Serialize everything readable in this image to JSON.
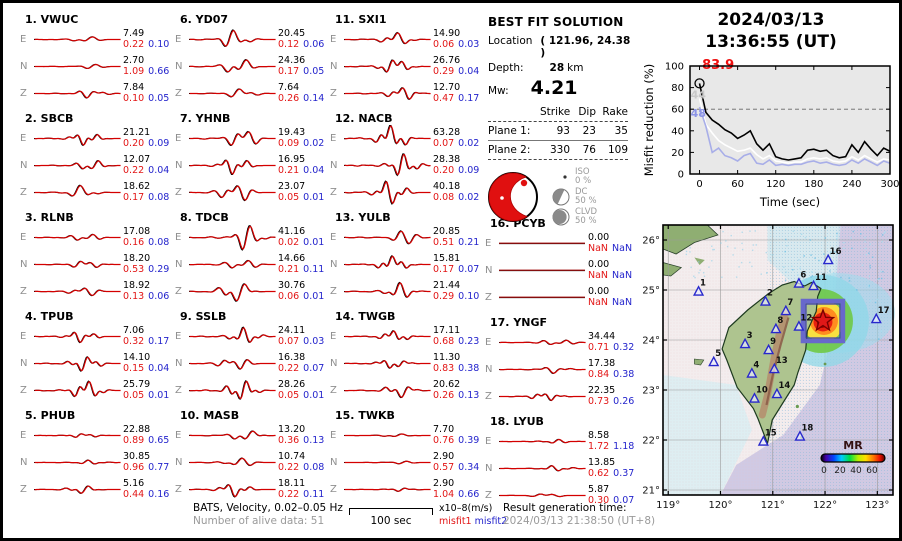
{
  "header": {
    "date": "2024/03/13",
    "time": "13:36:55  (UT)"
  },
  "solution": {
    "title": "BEST FIT SOLUTION",
    "location_label": "Location",
    "location_value": "( 121.96,  24.38 )",
    "depth_label": "Depth:",
    "depth_value": "28",
    "depth_unit": "km",
    "mw_label": "Mw:",
    "mw_value": "4.21",
    "table": {
      "headers": [
        "Strike",
        "Dip",
        "Rake"
      ],
      "rows": [
        {
          "label": "Plane 1:",
          "values": [
            "93",
            "23",
            "35"
          ]
        },
        {
          "label": "Plane 2:",
          "values": [
            "330",
            "76",
            "109"
          ]
        }
      ]
    },
    "legend": [
      {
        "label": "ISO",
        "pct": "0 %"
      },
      {
        "label": "DC",
        "pct": "50 %"
      },
      {
        "label": "CLVD",
        "pct": "50 %"
      }
    ]
  },
  "stations": [
    {
      "num": "1.",
      "code": "VWUC",
      "ch": [
        {
          "comp": "E",
          "amp": "7.49",
          "m1": "0.22",
          "m2": "0.10",
          "w": 0.22
        },
        {
          "comp": "N",
          "amp": "2.70",
          "m1": "1.09",
          "m2": "0.66",
          "w": 0.15
        },
        {
          "comp": "Z",
          "amp": "7.84",
          "m1": "0.10",
          "m2": "0.05",
          "w": 0.3
        }
      ]
    },
    {
      "num": "2.",
      "code": "SBCB",
      "ch": [
        {
          "comp": "E",
          "amp": "21.21",
          "m1": "0.20",
          "m2": "0.09",
          "w": 0.45
        },
        {
          "comp": "N",
          "amp": "12.07",
          "m1": "0.22",
          "m2": "0.04",
          "w": 0.4
        },
        {
          "comp": "Z",
          "amp": "18.62",
          "m1": "0.17",
          "m2": "0.08",
          "w": 0.45
        }
      ]
    },
    {
      "num": "3.",
      "code": "RLNB",
      "ch": [
        {
          "comp": "E",
          "amp": "17.08",
          "m1": "0.16",
          "m2": "0.08",
          "w": 0.3
        },
        {
          "comp": "N",
          "amp": "18.20",
          "m1": "0.53",
          "m2": "0.29",
          "w": 0.3
        },
        {
          "comp": "Z",
          "amp": "18.92",
          "m1": "0.13",
          "m2": "0.06",
          "w": 0.35
        }
      ]
    },
    {
      "num": "4.",
      "code": "TPUB",
      "ch": [
        {
          "comp": "E",
          "amp": "7.06",
          "m1": "0.32",
          "m2": "0.17",
          "w": 0.4
        },
        {
          "comp": "N",
          "amp": "14.10",
          "m1": "0.15",
          "m2": "0.04",
          "w": 0.55
        },
        {
          "comp": "Z",
          "amp": "25.79",
          "m1": "0.05",
          "m2": "0.01",
          "w": 0.7
        }
      ]
    },
    {
      "num": "5.",
      "code": "PHUB",
      "ch": [
        {
          "comp": "E",
          "amp": "22.88",
          "m1": "0.89",
          "m2": "0.65",
          "w": 0.15
        },
        {
          "comp": "N",
          "amp": "30.85",
          "m1": "0.96",
          "m2": "0.77",
          "w": 0.15
        },
        {
          "comp": "Z",
          "amp": "5.16",
          "m1": "0.44",
          "m2": "0.16",
          "w": 0.3
        }
      ]
    },
    {
      "num": "6.",
      "code": "YD07",
      "ch": [
        {
          "comp": "E",
          "amp": "20.45",
          "m1": "0.12",
          "m2": "0.06",
          "w": 0.65
        },
        {
          "comp": "N",
          "amp": "24.36",
          "m1": "0.17",
          "m2": "0.05",
          "w": 0.6
        },
        {
          "comp": "Z",
          "amp": "7.64",
          "m1": "0.26",
          "m2": "0.14",
          "w": 0.35
        }
      ]
    },
    {
      "num": "7.",
      "code": "YHNB",
      "ch": [
        {
          "comp": "E",
          "amp": "19.43",
          "m1": "0.09",
          "m2": "0.02",
          "w": 0.75
        },
        {
          "comp": "N",
          "amp": "16.95",
          "m1": "0.21",
          "m2": "0.04",
          "w": 0.6
        },
        {
          "comp": "Z",
          "amp": "23.07",
          "m1": "0.05",
          "m2": "0.01",
          "w": 0.8
        }
      ]
    },
    {
      "num": "8.",
      "code": "TDCB",
      "ch": [
        {
          "comp": "E",
          "amp": "41.16",
          "m1": "0.02",
          "m2": "0.01",
          "w": 0.9
        },
        {
          "comp": "N",
          "amp": "14.66",
          "m1": "0.21",
          "m2": "0.11",
          "w": 0.45
        },
        {
          "comp": "Z",
          "amp": "30.76",
          "m1": "0.06",
          "m2": "0.01",
          "w": 0.8
        }
      ]
    },
    {
      "num": "9.",
      "code": "SSLB",
      "ch": [
        {
          "comp": "E",
          "amp": "24.11",
          "m1": "0.07",
          "m2": "0.03",
          "w": 0.6
        },
        {
          "comp": "N",
          "amp": "16.38",
          "m1": "0.22",
          "m2": "0.07",
          "w": 0.5
        },
        {
          "comp": "Z",
          "amp": "28.26",
          "m1": "0.05",
          "m2": "0.01",
          "w": 0.75
        }
      ]
    },
    {
      "num": "10.",
      "code": "MASB",
      "ch": [
        {
          "comp": "E",
          "amp": "13.20",
          "m1": "0.36",
          "m2": "0.13",
          "w": 0.4
        },
        {
          "comp": "N",
          "amp": "10.74",
          "m1": "0.22",
          "m2": "0.08",
          "w": 0.35
        },
        {
          "comp": "Z",
          "amp": "18.11",
          "m1": "0.22",
          "m2": "0.11",
          "w": 0.5
        }
      ]
    },
    {
      "num": "11.",
      "code": "SXI1",
      "ch": [
        {
          "comp": "E",
          "amp": "14.90",
          "m1": "0.06",
          "m2": "0.03",
          "w": 0.5
        },
        {
          "comp": "N",
          "amp": "26.76",
          "m1": "0.29",
          "m2": "0.04",
          "w": 0.55
        },
        {
          "comp": "Z",
          "amp": "12.70",
          "m1": "0.47",
          "m2": "0.17",
          "w": 0.5
        }
      ]
    },
    {
      "num": "12.",
      "code": "NACB",
      "ch": [
        {
          "comp": "E",
          "amp": "63.28",
          "m1": "0.07",
          "m2": "0.02",
          "w": 1.0
        },
        {
          "comp": "N",
          "amp": "28.38",
          "m1": "0.20",
          "m2": "0.09",
          "w": 0.8
        },
        {
          "comp": "Z",
          "amp": "40.18",
          "m1": "0.08",
          "m2": "0.02",
          "w": 0.95
        }
      ]
    },
    {
      "num": "13.",
      "code": "YULB",
      "ch": [
        {
          "comp": "E",
          "amp": "20.85",
          "m1": "0.51",
          "m2": "0.21",
          "w": 0.5
        },
        {
          "comp": "N",
          "amp": "15.81",
          "m1": "0.17",
          "m2": "0.07",
          "w": 0.55
        },
        {
          "comp": "Z",
          "amp": "21.44",
          "m1": "0.29",
          "m2": "0.10",
          "w": 0.6
        }
      ]
    },
    {
      "num": "14.",
      "code": "TWGB",
      "ch": [
        {
          "comp": "E",
          "amp": "17.11",
          "m1": "0.68",
          "m2": "0.23",
          "w": 0.4
        },
        {
          "comp": "N",
          "amp": "11.30",
          "m1": "0.83",
          "m2": "0.38",
          "w": 0.35
        },
        {
          "comp": "Z",
          "amp": "20.62",
          "m1": "0.26",
          "m2": "0.13",
          "w": 0.5
        }
      ]
    },
    {
      "num": "15.",
      "code": "TWKB",
      "ch": [
        {
          "comp": "E",
          "amp": "7.70",
          "m1": "0.76",
          "m2": "0.39",
          "w": 0.12
        },
        {
          "comp": "N",
          "amp": "2.90",
          "m1": "0.57",
          "m2": "0.34",
          "w": 0.1
        },
        {
          "comp": "Z",
          "amp": "2.90",
          "m1": "1.04",
          "m2": "0.66",
          "w": 0.12
        }
      ]
    },
    {
      "num": "16.",
      "code": "PCYB",
      "ch": [
        {
          "comp": "E",
          "amp": "0.00",
          "m1": "NaN",
          "m2": "NaN",
          "w": 0
        },
        {
          "comp": "N",
          "amp": "0.00",
          "m1": "NaN",
          "m2": "NaN",
          "w": 0
        },
        {
          "comp": "Z",
          "amp": "0.00",
          "m1": "NaN",
          "m2": "NaN",
          "w": 0
        }
      ]
    },
    {
      "num": "17.",
      "code": "YNGF",
      "ch": [
        {
          "comp": "E",
          "amp": "34.44",
          "m1": "0.71",
          "m2": "0.32",
          "w": 0.3
        },
        {
          "comp": "N",
          "amp": "17.38",
          "m1": "0.84",
          "m2": "0.38",
          "w": 0.25
        },
        {
          "comp": "Z",
          "amp": "22.35",
          "m1": "0.73",
          "m2": "0.26",
          "w": 0.3
        }
      ]
    },
    {
      "num": "18.",
      "code": "LYUB",
      "ch": [
        {
          "comp": "E",
          "amp": "8.58",
          "m1": "1.72",
          "m2": "1.18",
          "w": 0.15
        },
        {
          "comp": "N",
          "amp": "13.85",
          "m1": "0.62",
          "m2": "0.37",
          "w": 0.2
        },
        {
          "comp": "Z",
          "amp": "5.87",
          "m1": "0.30",
          "m2": "0.07",
          "w": 0.15
        }
      ]
    }
  ],
  "chart_data": {
    "type": "line",
    "xlabel": "Time (sec)",
    "ylabel": "Misfit reduction (%)",
    "xlim": [
      -15,
      300
    ],
    "ylim": [
      0,
      100
    ],
    "x_ticks": [
      0,
      60,
      120,
      180,
      240,
      300
    ],
    "y_ticks": [
      0,
      20,
      40,
      60,
      80,
      100
    ],
    "dashed_line_y": 60,
    "x_step": 10,
    "marker": {
      "x": 0,
      "y": 83.9
    },
    "annotations": [
      {
        "text": "83.9",
        "color": "#ee1111",
        "x": 4,
        "y": 97
      },
      {
        "text": "44",
        "color": "#c8c8c8",
        "x": -14,
        "y": 70
      },
      {
        "text": "48",
        "color": "#8c94e6",
        "x": -14,
        "y": 53
      }
    ],
    "series": [
      {
        "name": "misfit-black",
        "color": "#000000",
        "values": [
          83.9,
          57,
          50,
          46,
          41,
          38,
          33,
          36,
          40,
          28,
          22,
          28,
          16,
          14,
          13,
          14,
          15,
          22,
          23,
          21,
          22,
          17,
          15,
          16,
          27,
          20,
          30,
          23,
          17,
          24,
          21
        ]
      },
      {
        "name": "misfit-white",
        "color": "#ffffff",
        "values": [
          70,
          46,
          38,
          31,
          27,
          24,
          21,
          22,
          24,
          18,
          14,
          17,
          12,
          11,
          10,
          11,
          11,
          14,
          15,
          14,
          15,
          12,
          11,
          12,
          16,
          13,
          17,
          14,
          11,
          14,
          13
        ]
      },
      {
        "name": "misfit-lightblue",
        "color": "#a8aee8",
        "values": [
          62,
          44,
          20,
          24,
          17,
          15,
          12,
          17,
          19,
          10,
          9,
          13,
          8,
          9,
          8,
          9,
          9,
          11,
          12,
          10,
          11,
          9,
          8,
          9,
          13,
          10,
          14,
          11,
          8,
          12,
          10
        ]
      }
    ]
  },
  "map": {
    "lat_ticks": [
      {
        "value": 26,
        "label": "26°"
      },
      {
        "value": 25,
        "label": "25°"
      },
      {
        "value": 24,
        "label": "24°"
      },
      {
        "value": 23,
        "label": "23°"
      },
      {
        "value": 22,
        "label": "22°"
      },
      {
        "value": 21,
        "label": "21°"
      }
    ],
    "lon_ticks": [
      {
        "value": 119,
        "label": "119°"
      },
      {
        "value": 120,
        "label": "120°"
      },
      {
        "value": 121,
        "label": "121°"
      },
      {
        "value": 122,
        "label": "122°"
      },
      {
        "value": 123,
        "label": "123°"
      }
    ],
    "epicenter": {
      "lon": 121.96,
      "lat": 24.38
    },
    "stations": [
      {
        "n": "1",
        "lon": 119.58,
        "lat": 24.97
      },
      {
        "n": "2",
        "lon": 120.86,
        "lat": 24.77
      },
      {
        "n": "3",
        "lon": 120.47,
        "lat": 23.92
      },
      {
        "n": "4",
        "lon": 120.6,
        "lat": 23.33
      },
      {
        "n": "5",
        "lon": 119.87,
        "lat": 23.56
      },
      {
        "n": "6",
        "lon": 121.5,
        "lat": 25.13
      },
      {
        "n": "7",
        "lon": 121.25,
        "lat": 24.58
      },
      {
        "n": "8",
        "lon": 121.06,
        "lat": 24.22
      },
      {
        "n": "9",
        "lon": 120.92,
        "lat": 23.8
      },
      {
        "n": "10",
        "lon": 120.65,
        "lat": 22.83
      },
      {
        "n": "11",
        "lon": 121.78,
        "lat": 25.08
      },
      {
        "n": "12",
        "lon": 121.5,
        "lat": 24.27
      },
      {
        "n": "13",
        "lon": 121.03,
        "lat": 23.42
      },
      {
        "n": "14",
        "lon": 121.08,
        "lat": 22.92
      },
      {
        "n": "15",
        "lon": 120.82,
        "lat": 21.97
      },
      {
        "n": "16",
        "lon": 122.06,
        "lat": 25.6
      },
      {
        "n": "17",
        "lon": 122.98,
        "lat": 24.42
      },
      {
        "n": "18",
        "lon": 121.52,
        "lat": 22.07
      }
    ],
    "colorbar": {
      "label": "MR",
      "ticks": [
        "0",
        "20",
        "40",
        "60"
      ]
    },
    "colors": {
      "station_triangle": "#2828cc",
      "epicenter_star": "#e01818",
      "epicenter_box": "#6868cc"
    }
  },
  "footer": {
    "left1": "BATS, Velocity, 0.02–0.05 Hz",
    "left2": "Number of alive data: 51",
    "scale_label": "100 sec",
    "units": "x10–8(m/s)",
    "misfit1_label": "misfit1",
    "misfit2_label": "misfit2",
    "right1": "Result generation time:",
    "right2": "2024/03/13 21:38:50 (UT+8)"
  }
}
